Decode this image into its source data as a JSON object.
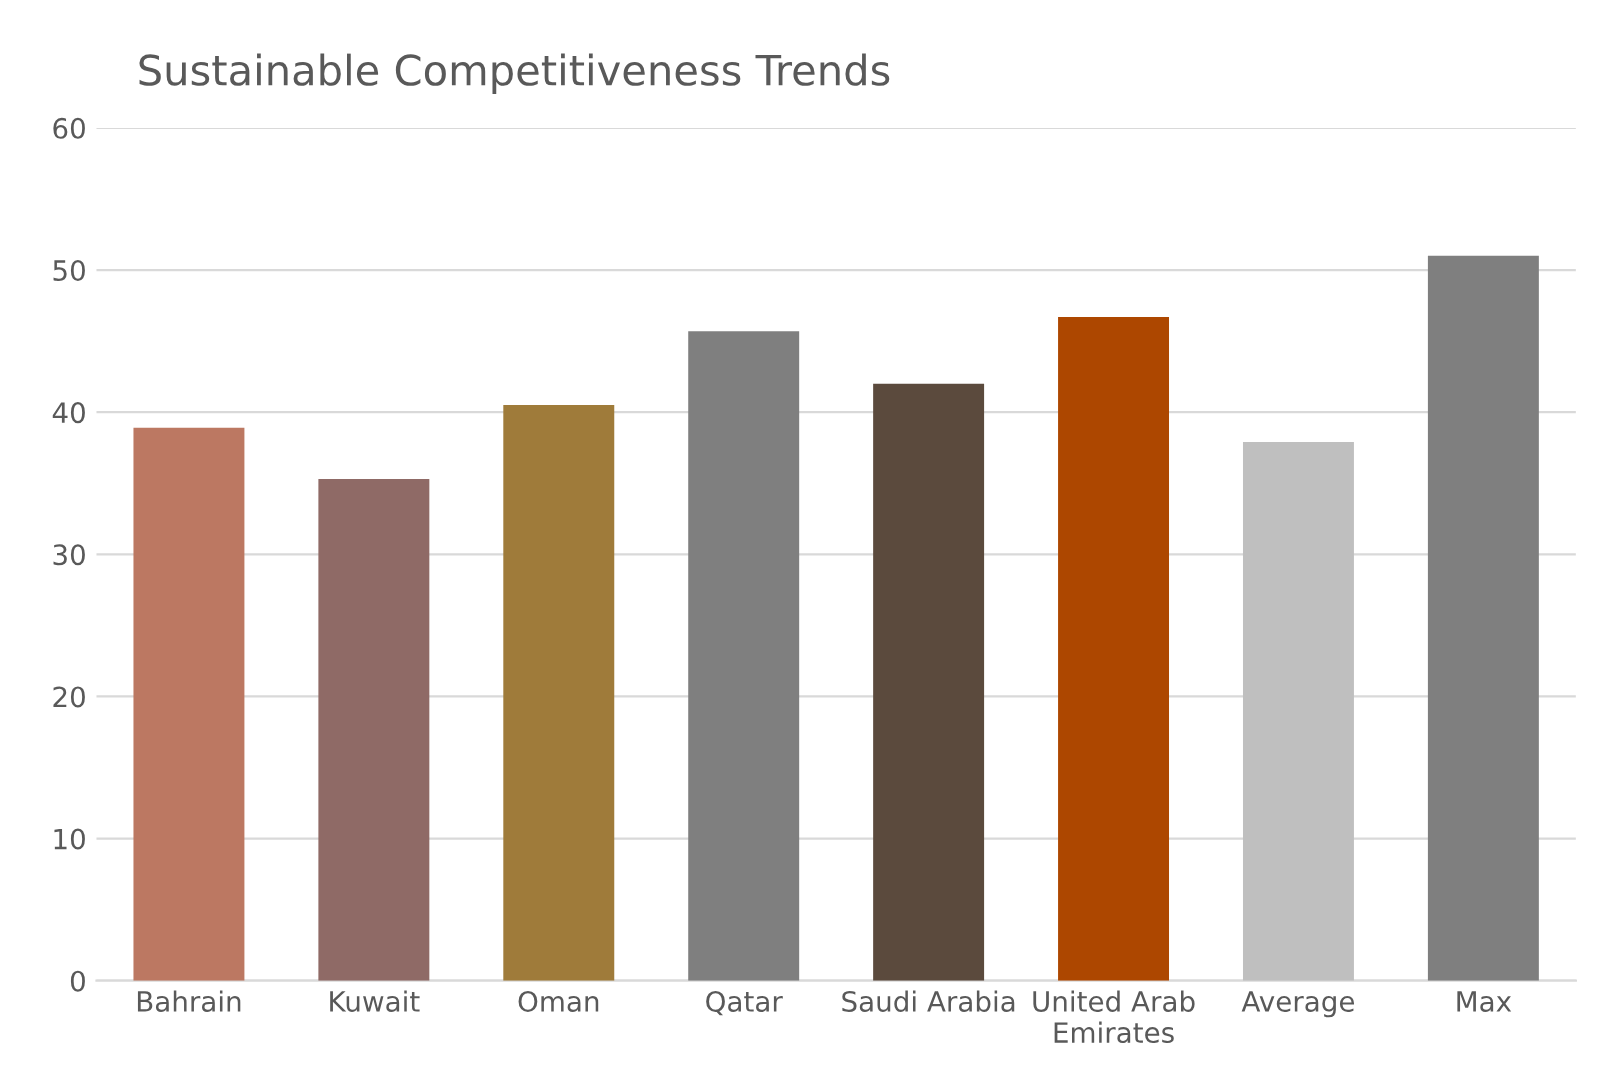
{
  "chart_data": {
    "type": "bar",
    "title": "Sustainable Competitiveness Trends",
    "categories": [
      "Bahrain",
      "Kuwait",
      "Oman",
      "Qatar",
      "Saudi Arabia",
      "United Arab\nEmirates",
      "Average",
      "Max"
    ],
    "values": [
      38.9,
      35.3,
      40.5,
      45.7,
      42.0,
      46.7,
      37.9,
      51.0
    ],
    "colors": [
      "#bc7862",
      "#8f6a66",
      "#9f7b3a",
      "#7f7f7f",
      "#5b4a3d",
      "#ad4700",
      "#bfbfbf",
      "#7f7f7f"
    ],
    "ylim": [
      0,
      60
    ],
    "yticks": [
      0,
      10,
      20,
      30,
      40,
      50,
      60
    ],
    "grid": "y",
    "legend": false
  }
}
